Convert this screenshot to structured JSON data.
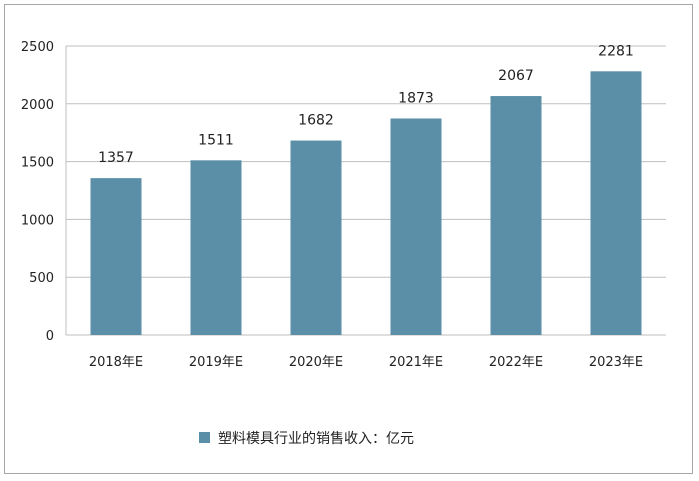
{
  "chart_data": {
    "type": "bar",
    "categories": [
      "2018年E",
      "2019年E",
      "2020年E",
      "2021年E",
      "2022年E",
      "2023年E"
    ],
    "series": [
      {
        "name": "塑料模具行业的销售收入：亿元",
        "values": [
          1357,
          1511,
          1682,
          1873,
          2067,
          2281
        ],
        "color": "#5b8fa8"
      }
    ],
    "ylim": [
      0,
      2500
    ],
    "yticks": [
      0,
      500,
      1000,
      1500,
      2000,
      2500
    ],
    "grid": true,
    "legend_position": "bottom"
  }
}
